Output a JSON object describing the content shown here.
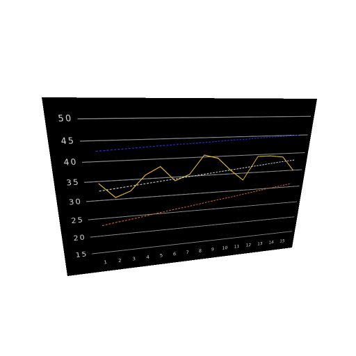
{
  "chart_data": {
    "type": "line",
    "categories": [
      "1",
      "2",
      "3",
      "4",
      "5",
      "6",
      "7",
      "8",
      "9",
      "10",
      "11",
      "12",
      "13",
      "14",
      "15"
    ],
    "series": [
      {
        "color": "#e8c020",
        "dash": false,
        "values": [
          34.5,
          30.5,
          32,
          36,
          38,
          34,
          35.5,
          40.5,
          39.5,
          36,
          33,
          39.5,
          39.5,
          39,
          35
        ]
      },
      {
        "color": "#cfcfcf",
        "dash": true,
        "values": [
          32.5,
          32.9,
          33.3,
          33.7,
          34.1,
          34.5,
          34.9,
          35.3,
          35.7,
          36.1,
          36.5,
          36.9,
          37.3,
          37.7,
          38
        ]
      },
      {
        "color": "#2a2ad0",
        "dash": true,
        "values": [
          42.5,
          42.7,
          42.9,
          43.1,
          43.3,
          43.5,
          43.6,
          43.8,
          44,
          44.2,
          44.3,
          44.5,
          44.7,
          44.8,
          45
        ]
      },
      {
        "color": "#e06a20",
        "dash": true,
        "values": [
          23,
          23.6,
          24.1,
          24.7,
          25.3,
          25.9,
          26.4,
          27,
          27.6,
          28.1,
          28.7,
          29.3,
          29.9,
          30.4,
          31
        ]
      }
    ],
    "ylim": [
      15,
      50
    ],
    "yticks": [
      15,
      20,
      25,
      30,
      35,
      40,
      45,
      50
    ],
    "grid": true,
    "background": "#000000",
    "grid_color": "#8a8a8a"
  }
}
